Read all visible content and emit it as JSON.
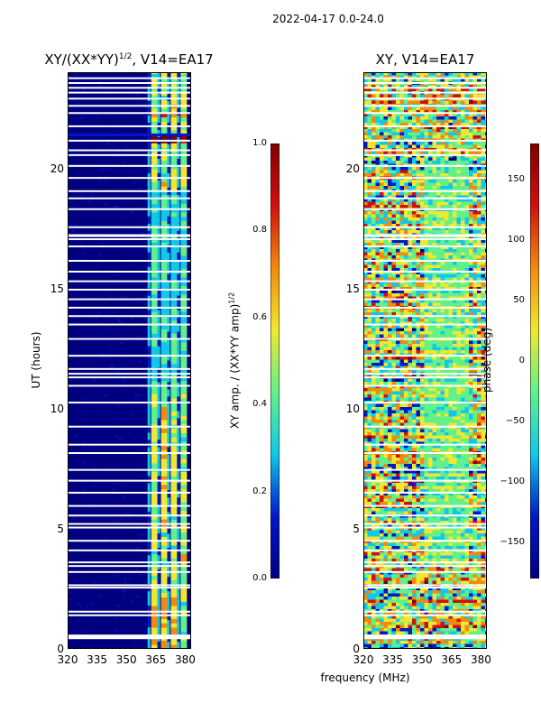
{
  "figure_title": "2022-04-17 0.0-24.0",
  "colors": {
    "background_blue": "#000080",
    "mid_blue": "#0018c8",
    "cyan": "#12c8e8",
    "green": "#62f08a",
    "yellow": "#f0e830",
    "orange": "#f08a10",
    "red": "#d01010",
    "dark_red": "#800000"
  },
  "chart_data": [
    {
      "type": "heatmap",
      "title": "XY/(XX*YY)^1/2, V14=EA17",
      "title_main": "XY/(XX*YY)",
      "title_exp": "1/2",
      "title_suffix": ", V14=EA17",
      "xlabel": "frequency (MHz)",
      "ylabel": "UT (hours)",
      "xlim": [
        320,
        383
      ],
      "ylim": [
        0,
        24
      ],
      "xticks": [
        "320",
        "335",
        "350",
        "365",
        "380"
      ],
      "yticks": [
        "0",
        "5",
        "10",
        "15",
        "20"
      ],
      "colorbar": {
        "label_main": "XY amp. / (XX*YY amp)",
        "label_exp": "1/2",
        "range": [
          0.0,
          1.0
        ],
        "ticks": [
          "0.0",
          "0.2",
          "0.4",
          "0.6",
          "0.8",
          "1.0"
        ]
      },
      "bright_channels_MHz": [
        364,
        369,
        374,
        379
      ]
    },
    {
      "type": "heatmap",
      "title": "XY, V14=EA17",
      "xlabel": "frequency (MHz)",
      "ylabel": "",
      "xlim": [
        320,
        383
      ],
      "ylim": [
        0,
        24
      ],
      "xticks": [
        "320",
        "335",
        "350",
        "365",
        "380"
      ],
      "yticks": [
        "0",
        "5",
        "10",
        "15",
        "20"
      ],
      "colorbar": {
        "label": "phase (deg)",
        "range": [
          -180,
          180
        ],
        "ticks": [
          "−150",
          "−100",
          "−50",
          "0",
          "50",
          "100",
          "150"
        ]
      }
    }
  ],
  "shared_xlabel": "frequency (MHz)",
  "flagged_gap_hours": [
    0.45,
    0.55,
    1.4,
    1.55,
    2.55,
    2.65,
    3.2,
    3.45,
    3.6,
    4.1,
    4.5,
    5.05,
    5.2,
    5.55,
    5.95,
    6.5,
    7.0,
    7.45,
    8.15,
    8.5,
    9.25,
    10.25,
    10.95,
    11.3,
    11.45,
    11.65,
    12.2,
    12.9,
    13.5,
    13.85,
    14.2,
    14.55,
    14.95,
    15.3,
    15.7,
    16.15,
    16.75,
    17.05,
    17.2,
    17.55,
    18.3,
    18.75,
    19.05,
    19.6,
    20.1,
    20.55,
    20.75,
    21.15,
    21.75,
    22.3,
    22.6,
    22.9,
    23.15,
    23.35,
    23.55,
    23.75
  ]
}
